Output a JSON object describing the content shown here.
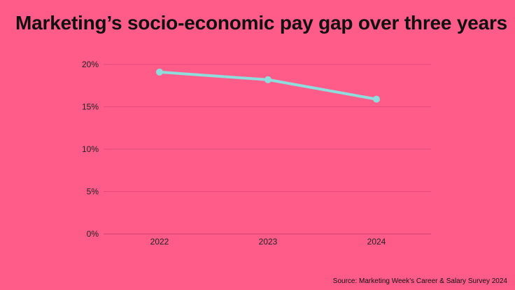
{
  "title": "Marketing’s socio-economic pay gap over three years",
  "source": "Source: Marketing Week’s Career & Salary Survey 2024",
  "colors": {
    "background": "#ff5c8a",
    "line": "#8fdcdc",
    "grid": "#d94674",
    "text": "#222222"
  },
  "chart_data": {
    "type": "line",
    "title": "Marketing’s socio-economic pay gap over three years",
    "categories": [
      "2022",
      "2023",
      "2024"
    ],
    "values": [
      19.1,
      18.2,
      15.9
    ],
    "yticks": [
      "0%",
      "5%",
      "10%",
      "15%",
      "20%"
    ],
    "ylim": [
      0,
      20
    ],
    "xlabel": "",
    "ylabel": "",
    "grid": true,
    "legend": "none"
  }
}
